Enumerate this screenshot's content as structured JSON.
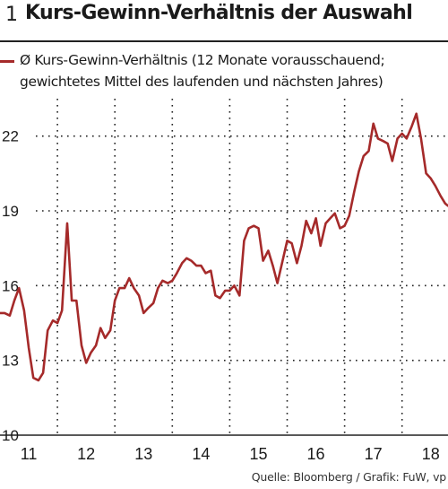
{
  "figure": {
    "number": "1",
    "title": "Kurs-Gewinn-Verhältnis der Auswahl",
    "source": "Quelle: Bloomberg / Grafik: FuW, vp"
  },
  "colors": {
    "line": "#a52a2a",
    "grid": "#222222",
    "text": "#1a1a1a"
  },
  "chart_data": {
    "type": "line",
    "title": "Kurs-Gewinn-Verhältnis der Auswahl",
    "xlabel": "",
    "ylabel": "",
    "ylim": [
      10,
      23.5
    ],
    "xlim": [
      2010.5,
      2018.3
    ],
    "yticks": [
      "10",
      "13",
      "16",
      "19",
      "22"
    ],
    "ytick_values": [
      10,
      13,
      16,
      19,
      22
    ],
    "xticks": [
      "11",
      "12",
      "13",
      "14",
      "15",
      "16",
      "17",
      "18"
    ],
    "xtick_positions": [
      2011.0,
      2012.0,
      2013.0,
      2014.0,
      2015.0,
      2016.0,
      2017.0,
      2018.0
    ],
    "grid": true,
    "legend_position": "top",
    "series": [
      {
        "name": "Ø Kurs-Gewinn-Verhältnis (12 Monate vorausschauend; gewichtetes Mittel des laufenden und nächsten Jahres)",
        "x": [
          2010.5,
          2010.58,
          2010.67,
          2010.75,
          2010.83,
          2010.92,
          2011.0,
          2011.08,
          2011.17,
          2011.25,
          2011.33,
          2011.42,
          2011.5,
          2011.58,
          2011.67,
          2011.75,
          2011.83,
          2011.92,
          2012.0,
          2012.08,
          2012.17,
          2012.25,
          2012.33,
          2012.42,
          2012.5,
          2012.58,
          2012.67,
          2012.75,
          2012.83,
          2012.92,
          2013.0,
          2013.08,
          2013.17,
          2013.25,
          2013.33,
          2013.42,
          2013.5,
          2013.58,
          2013.67,
          2013.75,
          2013.83,
          2013.92,
          2014.0,
          2014.08,
          2014.17,
          2014.25,
          2014.33,
          2014.42,
          2014.5,
          2014.58,
          2014.67,
          2014.75,
          2014.83,
          2014.92,
          2015.0,
          2015.08,
          2015.17,
          2015.25,
          2015.33,
          2015.42,
          2015.5,
          2015.58,
          2015.67,
          2015.75,
          2015.83,
          2015.92,
          2016.0,
          2016.08,
          2016.17,
          2016.25,
          2016.33,
          2016.42,
          2016.5,
          2016.58,
          2016.67,
          2016.75,
          2016.83,
          2016.92,
          2017.0,
          2017.08,
          2017.17,
          2017.25,
          2017.33,
          2017.42,
          2017.5,
          2017.58,
          2017.67,
          2017.75,
          2017.83,
          2017.92,
          2018.0,
          2018.08,
          2018.17,
          2018.25,
          2018.3
        ],
        "values": [
          14.9,
          14.9,
          14.8,
          15.4,
          15.9,
          15.0,
          13.5,
          12.3,
          12.2,
          12.5,
          14.2,
          14.6,
          14.5,
          15.0,
          18.5,
          15.4,
          15.4,
          13.6,
          12.9,
          13.3,
          13.6,
          14.3,
          13.9,
          14.2,
          15.4,
          15.9,
          15.9,
          16.3,
          15.9,
          15.6,
          14.9,
          15.1,
          15.3,
          15.9,
          16.2,
          16.1,
          16.2,
          16.5,
          16.9,
          17.1,
          17.0,
          16.8,
          16.8,
          16.5,
          16.6,
          15.6,
          15.5,
          15.8,
          15.8,
          16.0,
          15.6,
          17.8,
          18.3,
          18.4,
          18.3,
          17.0,
          17.4,
          16.8,
          16.1,
          17.0,
          17.8,
          17.7,
          16.9,
          17.6,
          18.6,
          18.1,
          18.7,
          17.6,
          18.5,
          18.7,
          18.9,
          18.3,
          18.4,
          18.8,
          19.8,
          20.6,
          21.2,
          21.4,
          22.5,
          21.9,
          21.8,
          21.7,
          21.0,
          21.9,
          22.1,
          21.9,
          22.4,
          22.9,
          21.9,
          20.5,
          20.3,
          20.0,
          19.6,
          19.3,
          19.2
        ]
      }
    ]
  }
}
